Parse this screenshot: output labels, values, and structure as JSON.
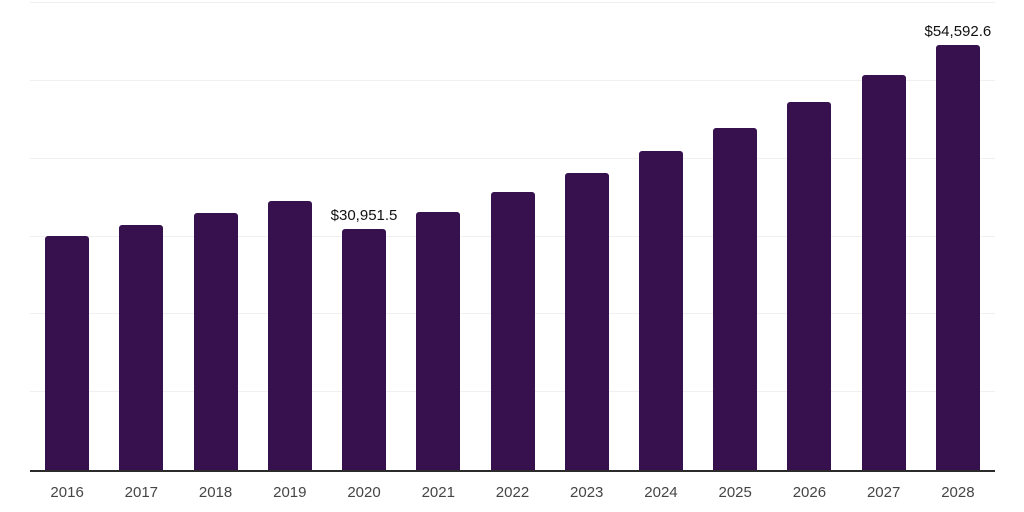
{
  "chart_data": {
    "type": "bar",
    "title": "",
    "xlabel": "",
    "ylabel": "",
    "categories": [
      "2016",
      "2017",
      "2018",
      "2019",
      "2020",
      "2021",
      "2022",
      "2023",
      "2024",
      "2025",
      "2026",
      "2027",
      "2028"
    ],
    "values": [
      30100,
      31500,
      33000,
      34600,
      30951.5,
      33200,
      35700,
      38200,
      41000,
      44000,
      47250,
      50800,
      54592.6
    ],
    "data_labels": {
      "2020": "$30,951.5",
      "2028": "$54,592.6"
    },
    "ylim": [
      0,
      60000
    ],
    "gridline_step": 10000,
    "grid": true,
    "legend": "none",
    "colors": {
      "bar": "#36114E",
      "gridline": "#F0F0F0",
      "axis_line": "#2B2B2B",
      "tick_label": "#454545",
      "data_label": "#111111",
      "background": "#FFFFFF"
    }
  }
}
